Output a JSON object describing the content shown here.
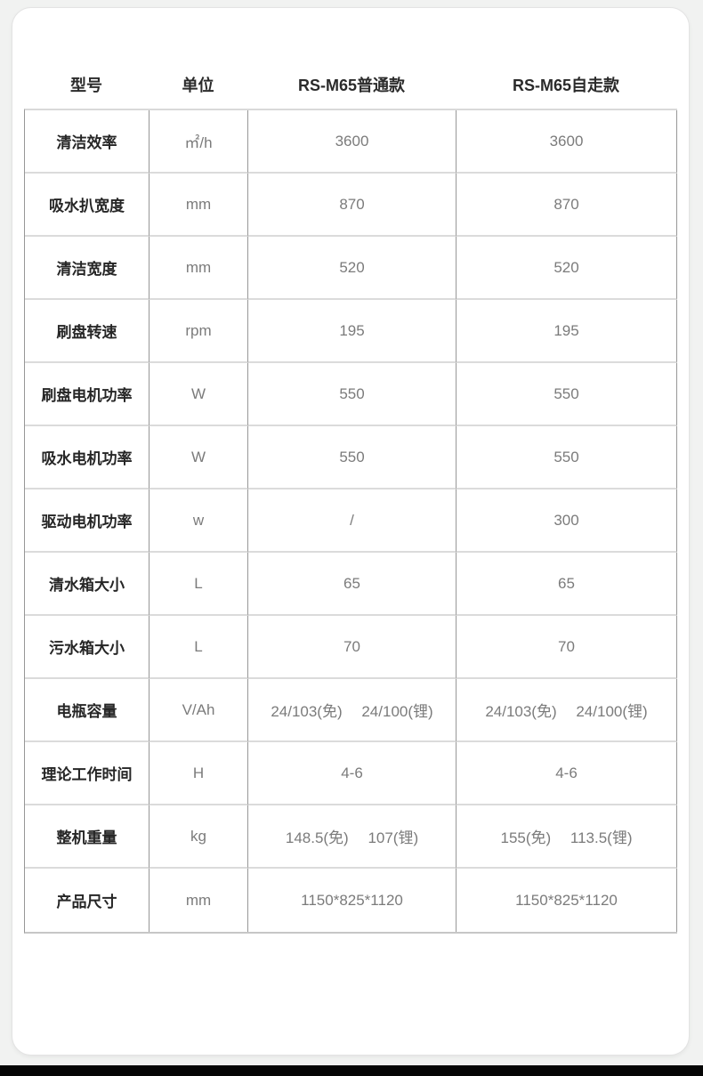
{
  "page": {
    "background_color": "#f1f2f1",
    "card_background": "#ffffff",
    "bottom_bar_color": "#050505"
  },
  "table": {
    "headers": {
      "model": "型号",
      "unit": "单位",
      "standard": "RS-M65普通款",
      "self_propelled": "RS-M65自走款"
    },
    "rows": [
      {
        "label": "清洁效率",
        "unit": "㎡/h",
        "standard": "3600",
        "self_propelled": "3600"
      },
      {
        "label": "吸水扒宽度",
        "unit": "mm",
        "standard": "870",
        "self_propelled": "870"
      },
      {
        "label": "清洁宽度",
        "unit": "mm",
        "standard": "520",
        "self_propelled": "520"
      },
      {
        "label": "刷盘转速",
        "unit": "rpm",
        "standard": "195",
        "self_propelled": "195"
      },
      {
        "label": "刷盘电机功率",
        "unit": "W",
        "standard": "550",
        "self_propelled": "550"
      },
      {
        "label": "吸水电机功率",
        "unit": "W",
        "standard": "550",
        "self_propelled": "550"
      },
      {
        "label": "驱动电机功率",
        "unit": "w",
        "standard": "/",
        "self_propelled": "300"
      },
      {
        "label": "清水箱大小",
        "unit": "L",
        "standard": "65",
        "self_propelled": "65"
      },
      {
        "label": "污水箱大小",
        "unit": "L",
        "standard": "70",
        "self_propelled": "70"
      },
      {
        "label": "电瓶容量",
        "unit": "V/Ah",
        "standard": "24/103(免)　 24/100(锂)",
        "self_propelled": "24/103(免)　 24/100(锂)"
      },
      {
        "label": "理论工作时间",
        "unit": "H",
        "standard": "4-6",
        "self_propelled": "4-6"
      },
      {
        "label": "整机重量",
        "unit": "kg",
        "standard": "148.5(免)　 107(锂)",
        "self_propelled": "155(免)　 113.5(锂)"
      },
      {
        "label": "产品尺寸",
        "unit": "mm",
        "standard": "1150*825*1120",
        "self_propelled": "1150*825*1120"
      }
    ],
    "border_colors": {
      "vertical": "#979797",
      "horizontal": "#dbdbdb"
    },
    "text_colors": {
      "label": "#262626",
      "value": "#7b7b7b",
      "header": "#2b2b2b"
    }
  }
}
